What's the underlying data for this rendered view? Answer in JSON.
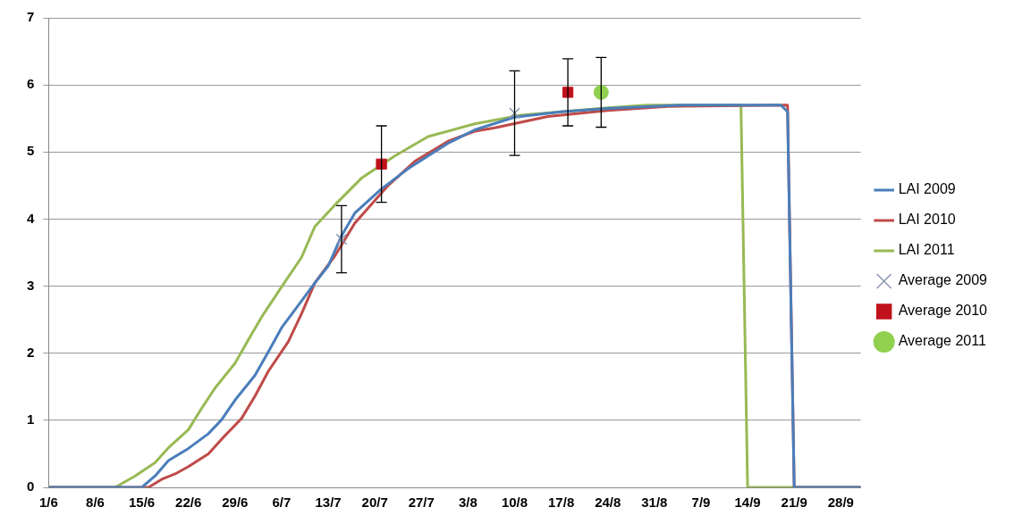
{
  "chart_data": {
    "type": "line",
    "xlim": [
      "--06-01",
      "--10-01"
    ],
    "xticks": [
      {
        "value": "--06-01",
        "label": "1/6"
      },
      {
        "value": "--06-08",
        "label": "8/6"
      },
      {
        "value": "--06-15",
        "label": "15/6"
      },
      {
        "value": "--06-22",
        "label": "22/6"
      },
      {
        "value": "--06-29",
        "label": "29/6"
      },
      {
        "value": "--07-06",
        "label": "6/7"
      },
      {
        "value": "--07-13",
        "label": "13/7"
      },
      {
        "value": "--07-20",
        "label": "20/7"
      },
      {
        "value": "--07-27",
        "label": "27/7"
      },
      {
        "value": "--08-03",
        "label": "3/8"
      },
      {
        "value": "--08-10",
        "label": "10/8"
      },
      {
        "value": "--08-17",
        "label": "17/8"
      },
      {
        "value": "--08-24",
        "label": "24/8"
      },
      {
        "value": "--08-31",
        "label": "31/8"
      },
      {
        "value": "--09-07",
        "label": "7/9"
      },
      {
        "value": "--09-14",
        "label": "14/9"
      },
      {
        "value": "--09-21",
        "label": "21/9"
      },
      {
        "value": "--09-28",
        "label": "28/9"
      }
    ],
    "ylim": [
      0,
      7
    ],
    "yticks": [
      0,
      1,
      2,
      3,
      4,
      5,
      6,
      7
    ],
    "grid": "y",
    "legend": "right",
    "line_style": "solid",
    "series": [
      {
        "name": "LAI 2009",
        "marker": "none",
        "color": "#4a7ebb",
        "x": [
          "--06-01",
          "--06-15",
          "--06-17",
          "--06-19",
          "--06-22",
          "--06-25",
          "--06-27",
          "--06-29",
          "--07-02",
          "--07-04",
          "--07-06",
          "--07-09",
          "--07-11",
          "--07-13",
          "--07-15",
          "--07-17",
          "--07-21",
          "--07-25",
          "--07-31",
          "--08-04",
          "--08-10",
          "--08-17",
          "--08-24",
          "--09-04",
          "--09-19",
          "--09-20",
          "--09-21",
          "--10-01"
        ],
        "values": [
          0,
          0,
          0.17,
          0.4,
          0.58,
          0.8,
          1.01,
          1.3,
          1.67,
          2.02,
          2.38,
          2.78,
          3.05,
          3.3,
          3.75,
          4.09,
          4.45,
          4.75,
          5.13,
          5.33,
          5.52,
          5.6,
          5.65,
          5.7,
          5.7,
          5.6,
          0,
          0
        ]
      },
      {
        "name": "LAI 2010",
        "marker": "none",
        "color": "#be4b48",
        "x": [
          "--06-01",
          "--06-16",
          "--06-18",
          "--06-20",
          "--06-22",
          "--06-25",
          "--06-27",
          "--06-30",
          "--07-02",
          "--07-04",
          "--07-07",
          "--07-09",
          "--07-11",
          "--07-14",
          "--07-17",
          "--07-22",
          "--07-26",
          "--07-31",
          "--08-04",
          "--08-07",
          "--08-15",
          "--08-24",
          "--09-02",
          "--09-20",
          "--09-21",
          "--10-01"
        ],
        "values": [
          0,
          0,
          0.12,
          0.2,
          0.31,
          0.5,
          0.72,
          1.03,
          1.36,
          1.73,
          2.17,
          2.59,
          3.05,
          3.45,
          3.94,
          4.5,
          4.86,
          5.16,
          5.31,
          5.36,
          5.53,
          5.62,
          5.68,
          5.7,
          0,
          0
        ]
      },
      {
        "name": "LAI 2011",
        "marker": "none",
        "color": "#98b954",
        "x": [
          "--06-01",
          "--06-11",
          "--06-14",
          "--06-17",
          "--06-19",
          "--06-22",
          "--06-24",
          "--06-26",
          "--06-29",
          "--07-01",
          "--07-03",
          "--07-06",
          "--07-09",
          "--07-11",
          "--07-14",
          "--07-18",
          "--07-23",
          "--07-28",
          "--08-04",
          "--08-11",
          "--08-24",
          "--08-30",
          "--09-13",
          "--09-14",
          "--10-01"
        ],
        "values": [
          0,
          0,
          0.17,
          0.37,
          0.59,
          0.86,
          1.18,
          1.48,
          1.85,
          2.2,
          2.54,
          2.99,
          3.43,
          3.89,
          4.21,
          4.61,
          4.94,
          5.23,
          5.42,
          5.55,
          5.66,
          5.7,
          5.7,
          0,
          0
        ]
      },
      {
        "name": "Average 2009",
        "type": "scatter",
        "marker": "cross",
        "color": "#8896b0",
        "x": [
          "--07-15",
          "--08-10"
        ],
        "values": [
          3.7,
          5.58
        ],
        "errors": [
          0.5,
          0.63
        ]
      },
      {
        "name": "Average 2010",
        "type": "scatter",
        "marker": "square",
        "color": "#c0121c",
        "x": [
          "--07-21",
          "--08-18"
        ],
        "values": [
          4.82,
          5.89
        ],
        "errors": [
          0.57,
          0.5
        ]
      },
      {
        "name": "Average 2011",
        "type": "scatter",
        "marker": "circle",
        "color": "#92d050",
        "x": [
          "--08-23"
        ],
        "values": [
          5.89
        ],
        "errors": [
          0.52
        ]
      }
    ]
  }
}
